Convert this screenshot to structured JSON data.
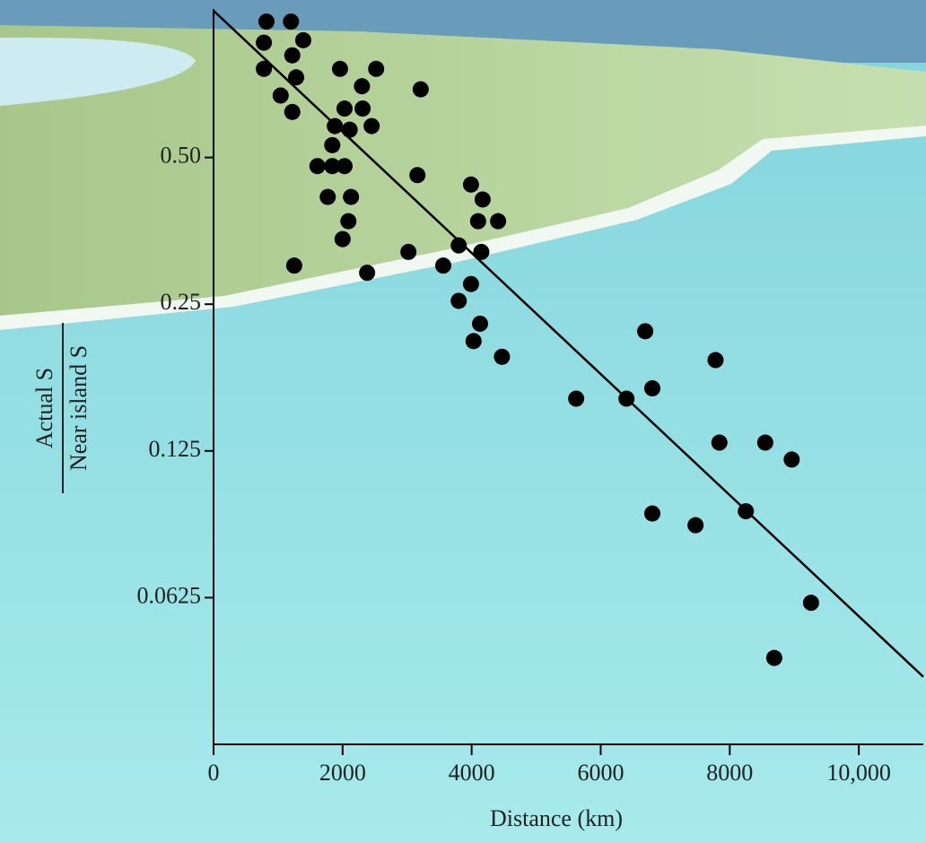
{
  "chart_data": {
    "type": "scatter",
    "xlabel": "Distance (km)",
    "ylabel": {
      "numerator": "Actual S",
      "denominator": "Near island S"
    },
    "ylog": true,
    "xlim": [
      0,
      11000
    ],
    "ylim": [
      0.03125,
      1
    ],
    "xticks": [
      0,
      2000,
      4000,
      6000,
      8000,
      {
        "value": 10000,
        "label": "10,000"
      }
    ],
    "yticks": [
      {
        "value": 0.5,
        "label": "0.50"
      },
      0.25,
      0.125,
      0.0625
    ],
    "color": "#000000",
    "x": [
      820,
      1200,
      780,
      1390,
      1220,
      780,
      1280,
      1960,
      2520,
      2300,
      3210,
      1040,
      2030,
      2310,
      1220,
      1880,
      2110,
      2450,
      1840,
      1610,
      1840,
      2030,
      3160,
      3990,
      1770,
      2130,
      4170,
      2090,
      4100,
      4410,
      2000,
      3800,
      3020,
      4150,
      1250,
      3560,
      2380,
      3990,
      3800,
      4130,
      4030,
      4470,
      6690,
      7780,
      5620,
      6400,
      6800,
      7840,
      8550,
      8960,
      6800,
      7470,
      8250,
      9260,
      8690
    ],
    "values": [
      0.95,
      0.95,
      0.86,
      0.87,
      0.81,
      0.76,
      0.73,
      0.76,
      0.76,
      0.7,
      0.69,
      0.67,
      0.63,
      0.63,
      0.62,
      0.58,
      0.57,
      0.58,
      0.53,
      0.48,
      0.48,
      0.48,
      0.46,
      0.44,
      0.415,
      0.415,
      0.41,
      0.37,
      0.37,
      0.37,
      0.34,
      0.33,
      0.32,
      0.32,
      0.3,
      0.3,
      0.29,
      0.275,
      0.254,
      0.228,
      0.21,
      0.195,
      0.22,
      0.192,
      0.16,
      0.16,
      0.168,
      0.13,
      0.13,
      0.12,
      0.093,
      0.088,
      0.094,
      0.061,
      0.047
    ],
    "trend_line": {
      "x": [
        0,
        11000
      ],
      "values": [
        1.0,
        0.043
      ]
    }
  }
}
